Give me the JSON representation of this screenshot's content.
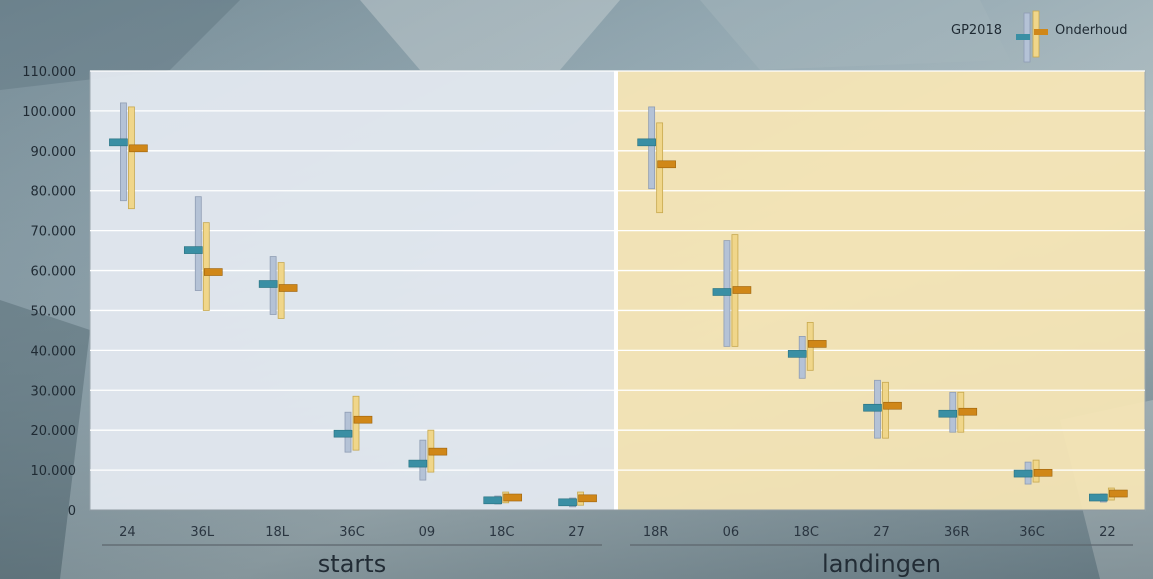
{
  "chart_data": {
    "type": "range",
    "ylim": [
      0,
      110000
    ],
    "yticks": [
      "0",
      "10.000",
      "20.000",
      "30.000",
      "40.000",
      "50.000",
      "60.000",
      "70.000",
      "80.000",
      "90.000",
      "100.000",
      "110.000"
    ],
    "ytick_values": [
      0,
      10000,
      20000,
      30000,
      40000,
      50000,
      60000,
      70000,
      80000,
      90000,
      100000,
      110000
    ],
    "grid": true,
    "legend_position": "top-right",
    "series": [
      {
        "name": "GP2018",
        "range_color": "#b4c2d6",
        "marker_color": "#3a8fa4"
      },
      {
        "name": "Onderhoud",
        "range_color": "#f0d68a",
        "marker_color": "#d08718"
      }
    ],
    "groups": [
      {
        "label": "starts",
        "background": "#e4e9f1",
        "categories": [
          {
            "label": "24",
            "GP2018": {
              "low": 77500,
              "high": 102000,
              "mid": 92000
            },
            "Onderhoud": {
              "low": 75500,
              "high": 101000,
              "mid": 90500
            }
          },
          {
            "label": "36L",
            "GP2018": {
              "low": 55000,
              "high": 78500,
              "mid": 65000
            },
            "Onderhoud": {
              "low": 50000,
              "high": 72000,
              "mid": 59500
            }
          },
          {
            "label": "18L",
            "GP2018": {
              "low": 49000,
              "high": 63500,
              "mid": 56500
            },
            "Onderhoud": {
              "low": 48000,
              "high": 62000,
              "mid": 55500
            }
          },
          {
            "label": "36C",
            "GP2018": {
              "low": 14500,
              "high": 24500,
              "mid": 19000
            },
            "Onderhoud": {
              "low": 15000,
              "high": 28500,
              "mid": 22500
            }
          },
          {
            "label": "09",
            "GP2018": {
              "low": 7500,
              "high": 17500,
              "mid": 11500
            },
            "Onderhoud": {
              "low": 9500,
              "high": 20000,
              "mid": 14500
            }
          },
          {
            "label": "18C",
            "GP2018": {
              "low": 1500,
              "high": 3500,
              "mid": 2300
            },
            "Onderhoud": {
              "low": 1800,
              "high": 4500,
              "mid": 3000
            }
          },
          {
            "label": "27",
            "GP2018": {
              "low": 800,
              "high": 3000,
              "mid": 1800
            },
            "Onderhoud": {
              "low": 1200,
              "high": 4500,
              "mid": 2800
            }
          }
        ]
      },
      {
        "label": "landingen",
        "background": "#f8e6b6",
        "categories": [
          {
            "label": "18R",
            "GP2018": {
              "low": 80500,
              "high": 101000,
              "mid": 92000
            },
            "Onderhoud": {
              "low": 74500,
              "high": 97000,
              "mid": 86500
            }
          },
          {
            "label": "06",
            "GP2018": {
              "low": 41000,
              "high": 67500,
              "mid": 54500
            },
            "Onderhoud": {
              "low": 41000,
              "high": 69000,
              "mid": 55000
            }
          },
          {
            "label": "18C",
            "GP2018": {
              "low": 33000,
              "high": 43500,
              "mid": 39000
            },
            "Onderhoud": {
              "low": 35000,
              "high": 47000,
              "mid": 41500
            }
          },
          {
            "label": "27",
            "GP2018": {
              "low": 18000,
              "high": 32500,
              "mid": 25500
            },
            "Onderhoud": {
              "low": 18000,
              "high": 32000,
              "mid": 26000
            }
          },
          {
            "label": "36R",
            "GP2018": {
              "low": 19500,
              "high": 29500,
              "mid": 24000
            },
            "Onderhoud": {
              "low": 19500,
              "high": 29500,
              "mid": 24500
            }
          },
          {
            "label": "36C",
            "GP2018": {
              "low": 6500,
              "high": 12000,
              "mid": 9000
            },
            "Onderhoud": {
              "low": 7000,
              "high": 12500,
              "mid": 9200
            }
          },
          {
            "label": "22",
            "GP2018": {
              "low": 2000,
              "high": 4000,
              "mid": 3000
            },
            "Onderhoud": {
              "low": 2500,
              "high": 5500,
              "mid": 4000
            }
          }
        ]
      }
    ]
  }
}
